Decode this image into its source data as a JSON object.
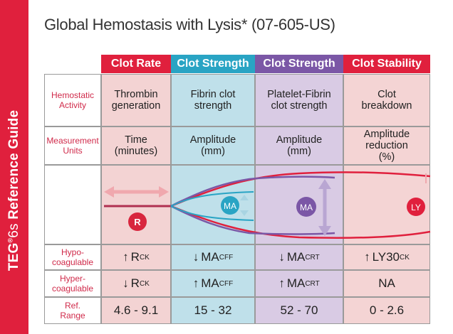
{
  "sidebar": {
    "brand": "TEG",
    "registered": "®",
    "model": "6s",
    "subtitle": " Reference Guide"
  },
  "title": "Global Hemostasis with Lysis* (07-605-US)",
  "columns": [
    {
      "header": "Clot Rate",
      "color": "#e0203d"
    },
    {
      "header": "Clot Strength",
      "color": "#29a4c4"
    },
    {
      "header": "Clot Strength",
      "color": "#7b57a6"
    },
    {
      "header": "Clot Stability",
      "color": "#e0203d"
    }
  ],
  "rows": {
    "hemostatic": {
      "label": "Hemostatic\nActivity",
      "cells": [
        "Thrombin\ngeneration",
        "Fibrin clot\nstrength",
        "Platelet-Fibrin\nclot strength",
        "Clot\nbreakdown"
      ]
    },
    "measurement": {
      "label": "Measurement\nUnits",
      "cells": [
        "Time\n(minutes)",
        "Amplitude\n(mm)",
        "Amplitude\n(mm)",
        "Amplitude\nreduction\n(%)"
      ]
    },
    "hypo": {
      "label": "Hypo-\ncoagulable",
      "cells": [
        {
          "arrow": "↑",
          "main": "R",
          "sub": "CK"
        },
        {
          "arrow": "↓",
          "main": "MA",
          "sub": "CFF"
        },
        {
          "arrow": "↓",
          "main": "MA",
          "sub": "CRT"
        },
        {
          "arrow": "↑",
          "main": "LY30",
          "sub": "CK"
        }
      ]
    },
    "hyper": {
      "label": "Hyper-\ncoagulable",
      "cells": [
        {
          "arrow": "↓",
          "main": "R",
          "sub": "CK"
        },
        {
          "arrow": "↑",
          "main": "MA",
          "sub": "CFF"
        },
        {
          "arrow": "↑",
          "main": "MA",
          "sub": "CRT"
        },
        {
          "arrow": "",
          "main": "NA",
          "sub": ""
        }
      ]
    },
    "ref": {
      "label": "Ref.\nRange",
      "cells": [
        "4.6 - 9.1",
        "15 - 32",
        "52 - 70",
        "0 - 2.6"
      ]
    }
  },
  "tracing": {
    "r_label": "R",
    "ma_cff_label": "MA",
    "ma_crt_label": "MA",
    "ly_label": "LY"
  },
  "colors": {
    "red": "#e0203d",
    "teal": "#29a4c4",
    "purple": "#7b57a6",
    "pink_arrow": "#f0a8ae",
    "lavender_arrow": "#b9a6d2"
  }
}
